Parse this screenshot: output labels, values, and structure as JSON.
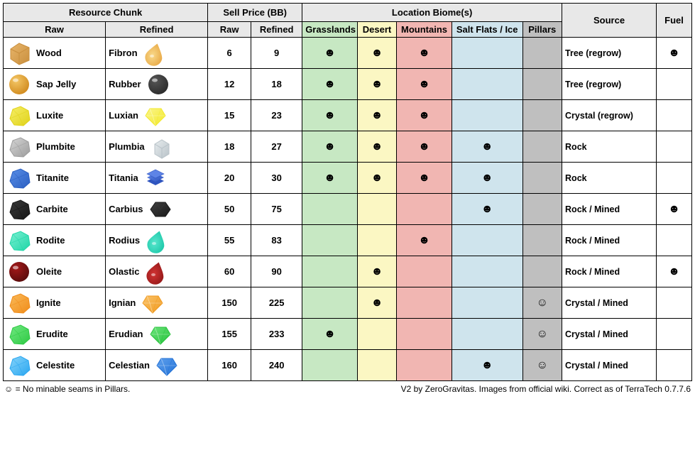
{
  "headers": {
    "resource_chunk": "Resource Chunk",
    "raw": "Raw",
    "refined": "Refined",
    "sell_price": "Sell Price (BB)",
    "location_biomes": "Location Biome(s)",
    "source": "Source",
    "fuel": "Fuel"
  },
  "biomes": [
    {
      "label": "Grasslands",
      "bg": "#c7e8c3"
    },
    {
      "label": "Desert",
      "bg": "#fbf7c3"
    },
    {
      "label": "Mountains",
      "bg": "#f1b6b2"
    },
    {
      "label": "Salt Flats / Ice",
      "bg": "#cfe4ed"
    },
    {
      "label": "Pillars",
      "bg": "#bfbfbf"
    }
  ],
  "marks": {
    "solid": "☻",
    "hollow": "☺"
  },
  "colwidths": {
    "raw": 130,
    "refined": 130,
    "price_raw": 55,
    "price_refined": 65,
    "b0": 70,
    "b1": 50,
    "b2": 70,
    "b3": 90,
    "b4": 50,
    "source": 120,
    "fuel": 45
  },
  "rows": [
    {
      "raw": "Wood",
      "refined": "Fibron",
      "raw_icon_colors": [
        "#c98f3e",
        "#e8b56a"
      ],
      "ref_icon_colors": [
        "#e6a23c",
        "#f9d98a"
      ],
      "raw_shape": "block",
      "ref_shape": "drop",
      "price_raw": 6,
      "price_refined": 9,
      "biomes": [
        "solid",
        "solid",
        "solid",
        "",
        ""
      ],
      "source": "Tree (regrow)",
      "fuel": "solid"
    },
    {
      "raw": "Sap Jelly",
      "refined": "Rubber",
      "raw_icon_colors": [
        "#d18b1f",
        "#f4c766"
      ],
      "ref_icon_colors": [
        "#2b2b2b",
        "#565656"
      ],
      "raw_shape": "sphere",
      "ref_shape": "sphere",
      "price_raw": 12,
      "price_refined": 18,
      "biomes": [
        "solid",
        "solid",
        "solid",
        "",
        ""
      ],
      "source": "Tree (regrow)",
      "fuel": ""
    },
    {
      "raw": "Luxite",
      "refined": "Luxian",
      "raw_icon_colors": [
        "#e0d21a",
        "#f6ef68"
      ],
      "ref_icon_colors": [
        "#f2e92a",
        "#fbf58a"
      ],
      "raw_shape": "rock",
      "ref_shape": "gem",
      "price_raw": 15,
      "price_refined": 23,
      "biomes": [
        "solid",
        "solid",
        "solid",
        "",
        ""
      ],
      "source": "Crystal (regrow)",
      "fuel": ""
    },
    {
      "raw": "Plumbite",
      "refined": "Plumbia",
      "raw_icon_colors": [
        "#9c9c9c",
        "#d6d6d6"
      ],
      "ref_icon_colors": [
        "#b8c2c8",
        "#e7ecee"
      ],
      "raw_shape": "rock",
      "ref_shape": "cube",
      "price_raw": 18,
      "price_refined": 27,
      "biomes": [
        "solid",
        "solid",
        "solid",
        "solid",
        ""
      ],
      "source": "Rock",
      "fuel": ""
    },
    {
      "raw": "Titanite",
      "refined": "Titania",
      "raw_icon_colors": [
        "#2b5fc1",
        "#5a8fe8"
      ],
      "ref_icon_colors": [
        "#2f55bf",
        "#5e84e6"
      ],
      "raw_shape": "rock",
      "ref_shape": "stack",
      "price_raw": 20,
      "price_refined": 30,
      "biomes": [
        "solid",
        "solid",
        "solid",
        "solid",
        ""
      ],
      "source": "Rock",
      "fuel": ""
    },
    {
      "raw": "Carbite",
      "refined": "Carbius",
      "raw_icon_colors": [
        "#161616",
        "#3a3a3a"
      ],
      "ref_icon_colors": [
        "#1a1a1a",
        "#404040"
      ],
      "raw_shape": "rock",
      "ref_shape": "hex",
      "price_raw": 50,
      "price_refined": 75,
      "biomes": [
        "",
        "",
        "",
        "solid",
        ""
      ],
      "source": "Rock / Mined",
      "fuel": "solid"
    },
    {
      "raw": "Rodite",
      "refined": "Rodius",
      "raw_icon_colors": [
        "#1fd6a7",
        "#7af0d2"
      ],
      "ref_icon_colors": [
        "#15c4a4",
        "#58e6cd"
      ],
      "raw_shape": "rock",
      "ref_shape": "drop",
      "price_raw": 55,
      "price_refined": 83,
      "biomes": [
        "",
        "",
        "solid",
        "",
        ""
      ],
      "source": "Rock / Mined",
      "fuel": ""
    },
    {
      "raw": "Oleite",
      "refined": "Olastic",
      "raw_icon_colors": [
        "#5a0c0c",
        "#a51919"
      ],
      "ref_icon_colors": [
        "#8c1515",
        "#d23333"
      ],
      "raw_shape": "sphere",
      "ref_shape": "drop",
      "price_raw": 60,
      "price_refined": 90,
      "biomes": [
        "",
        "solid",
        "",
        "",
        ""
      ],
      "source": "Rock / Mined",
      "fuel": "solid"
    },
    {
      "raw": "Ignite",
      "refined": "Ignian",
      "raw_icon_colors": [
        "#f08c1a",
        "#fabb5a"
      ],
      "ref_icon_colors": [
        "#f09a1f",
        "#fac268"
      ],
      "raw_shape": "rock",
      "ref_shape": "gem",
      "price_raw": 150,
      "price_refined": 225,
      "biomes": [
        "",
        "solid",
        "",
        "",
        "hollow"
      ],
      "source": "Crystal / Mined",
      "fuel": ""
    },
    {
      "raw": "Erudite",
      "refined": "Erudian",
      "raw_icon_colors": [
        "#2ec943",
        "#72e983"
      ],
      "ref_icon_colors": [
        "#26c23a",
        "#6de47d"
      ],
      "raw_shape": "rock",
      "ref_shape": "gem",
      "price_raw": 155,
      "price_refined": 233,
      "biomes": [
        "solid",
        "",
        "",
        "",
        "hollow"
      ],
      "source": "Crystal / Mined",
      "fuel": ""
    },
    {
      "raw": "Celestite",
      "refined": "Celestian",
      "raw_icon_colors": [
        "#2aa6f0",
        "#87d4fa"
      ],
      "ref_icon_colors": [
        "#2372d6",
        "#5ea0ed"
      ],
      "raw_shape": "rock",
      "ref_shape": "gem",
      "price_raw": 160,
      "price_refined": 240,
      "biomes": [
        "",
        "",
        "",
        "solid",
        "hollow"
      ],
      "source": "Crystal / Mined",
      "fuel": ""
    }
  ],
  "footer": {
    "left": "☺ = No minable seams in Pillars.",
    "right": "V2 by ZeroGravitas. Images from official wiki. Correct as of TerraTech 0.7.7.6"
  }
}
